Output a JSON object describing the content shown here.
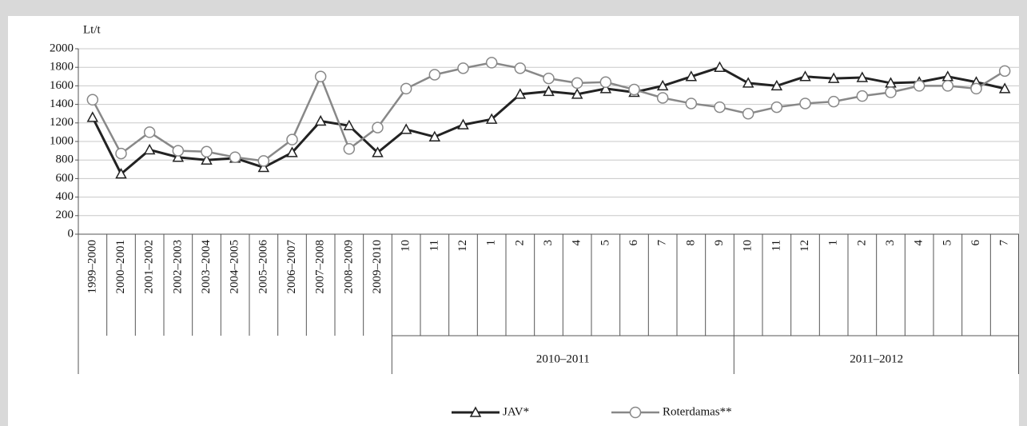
{
  "chart_data": {
    "type": "line",
    "y_label": "Lt/t",
    "categories": [
      "1999–2000",
      "2000–2001",
      "2001–2002",
      "2002–2003",
      "2003–2004",
      "2004–2005",
      "2005–2006",
      "2006–2007",
      "2007–2008",
      "2008–2009",
      "2009–2010",
      "10",
      "11",
      "12",
      "1",
      "2",
      "3",
      "4",
      "5",
      "6",
      "7",
      "8",
      "9",
      "10",
      "11",
      "12",
      "1",
      "2",
      "3",
      "4",
      "5",
      "6",
      "7"
    ],
    "category_groups": [
      null,
      null,
      null,
      null,
      null,
      null,
      null,
      null,
      null,
      null,
      null,
      "2010–2011",
      "2010–2011",
      "2010–2011",
      "2010–2011",
      "2010–2011",
      "2010–2011",
      "2010–2011",
      "2010–2011",
      "2010–2011",
      "2010–2011",
      "2010–2011",
      "2010–2011",
      "2011–2012",
      "2011–2012",
      "2011–2012",
      "2011–2012",
      "2011–2012",
      "2011–2012",
      "2011–2012",
      "2011–2012",
      "2011–2012",
      "2011–2012"
    ],
    "series": [
      {
        "name": "JAV*",
        "color": "#222222",
        "marker": "triangle",
        "values": [
          1260,
          650,
          910,
          830,
          800,
          820,
          720,
          880,
          1220,
          1170,
          880,
          1130,
          1050,
          1180,
          1240,
          1510,
          1540,
          1510,
          1570,
          1530,
          1600,
          1700,
          1800,
          1630,
          1600,
          1700,
          1680,
          1690,
          1630,
          1640,
          1700,
          1640,
          1570
        ]
      },
      {
        "name": "Roterdamas**",
        "color": "#888888",
        "marker": "circle",
        "values": [
          1450,
          870,
          1100,
          900,
          890,
          830,
          790,
          1020,
          1700,
          920,
          1150,
          1570,
          1720,
          1790,
          1850,
          1790,
          1680,
          1630,
          1640,
          1560,
          1470,
          1410,
          1370,
          1300,
          1370,
          1410,
          1430,
          1490,
          1530,
          1600,
          1600,
          1570,
          1760
        ]
      }
    ],
    "ylim": [
      0,
      2000
    ],
    "yticks": [
      0,
      200,
      400,
      600,
      800,
      1000,
      1200,
      1400,
      1600,
      1800,
      2000
    ],
    "grid": true,
    "legend": "bottom"
  }
}
